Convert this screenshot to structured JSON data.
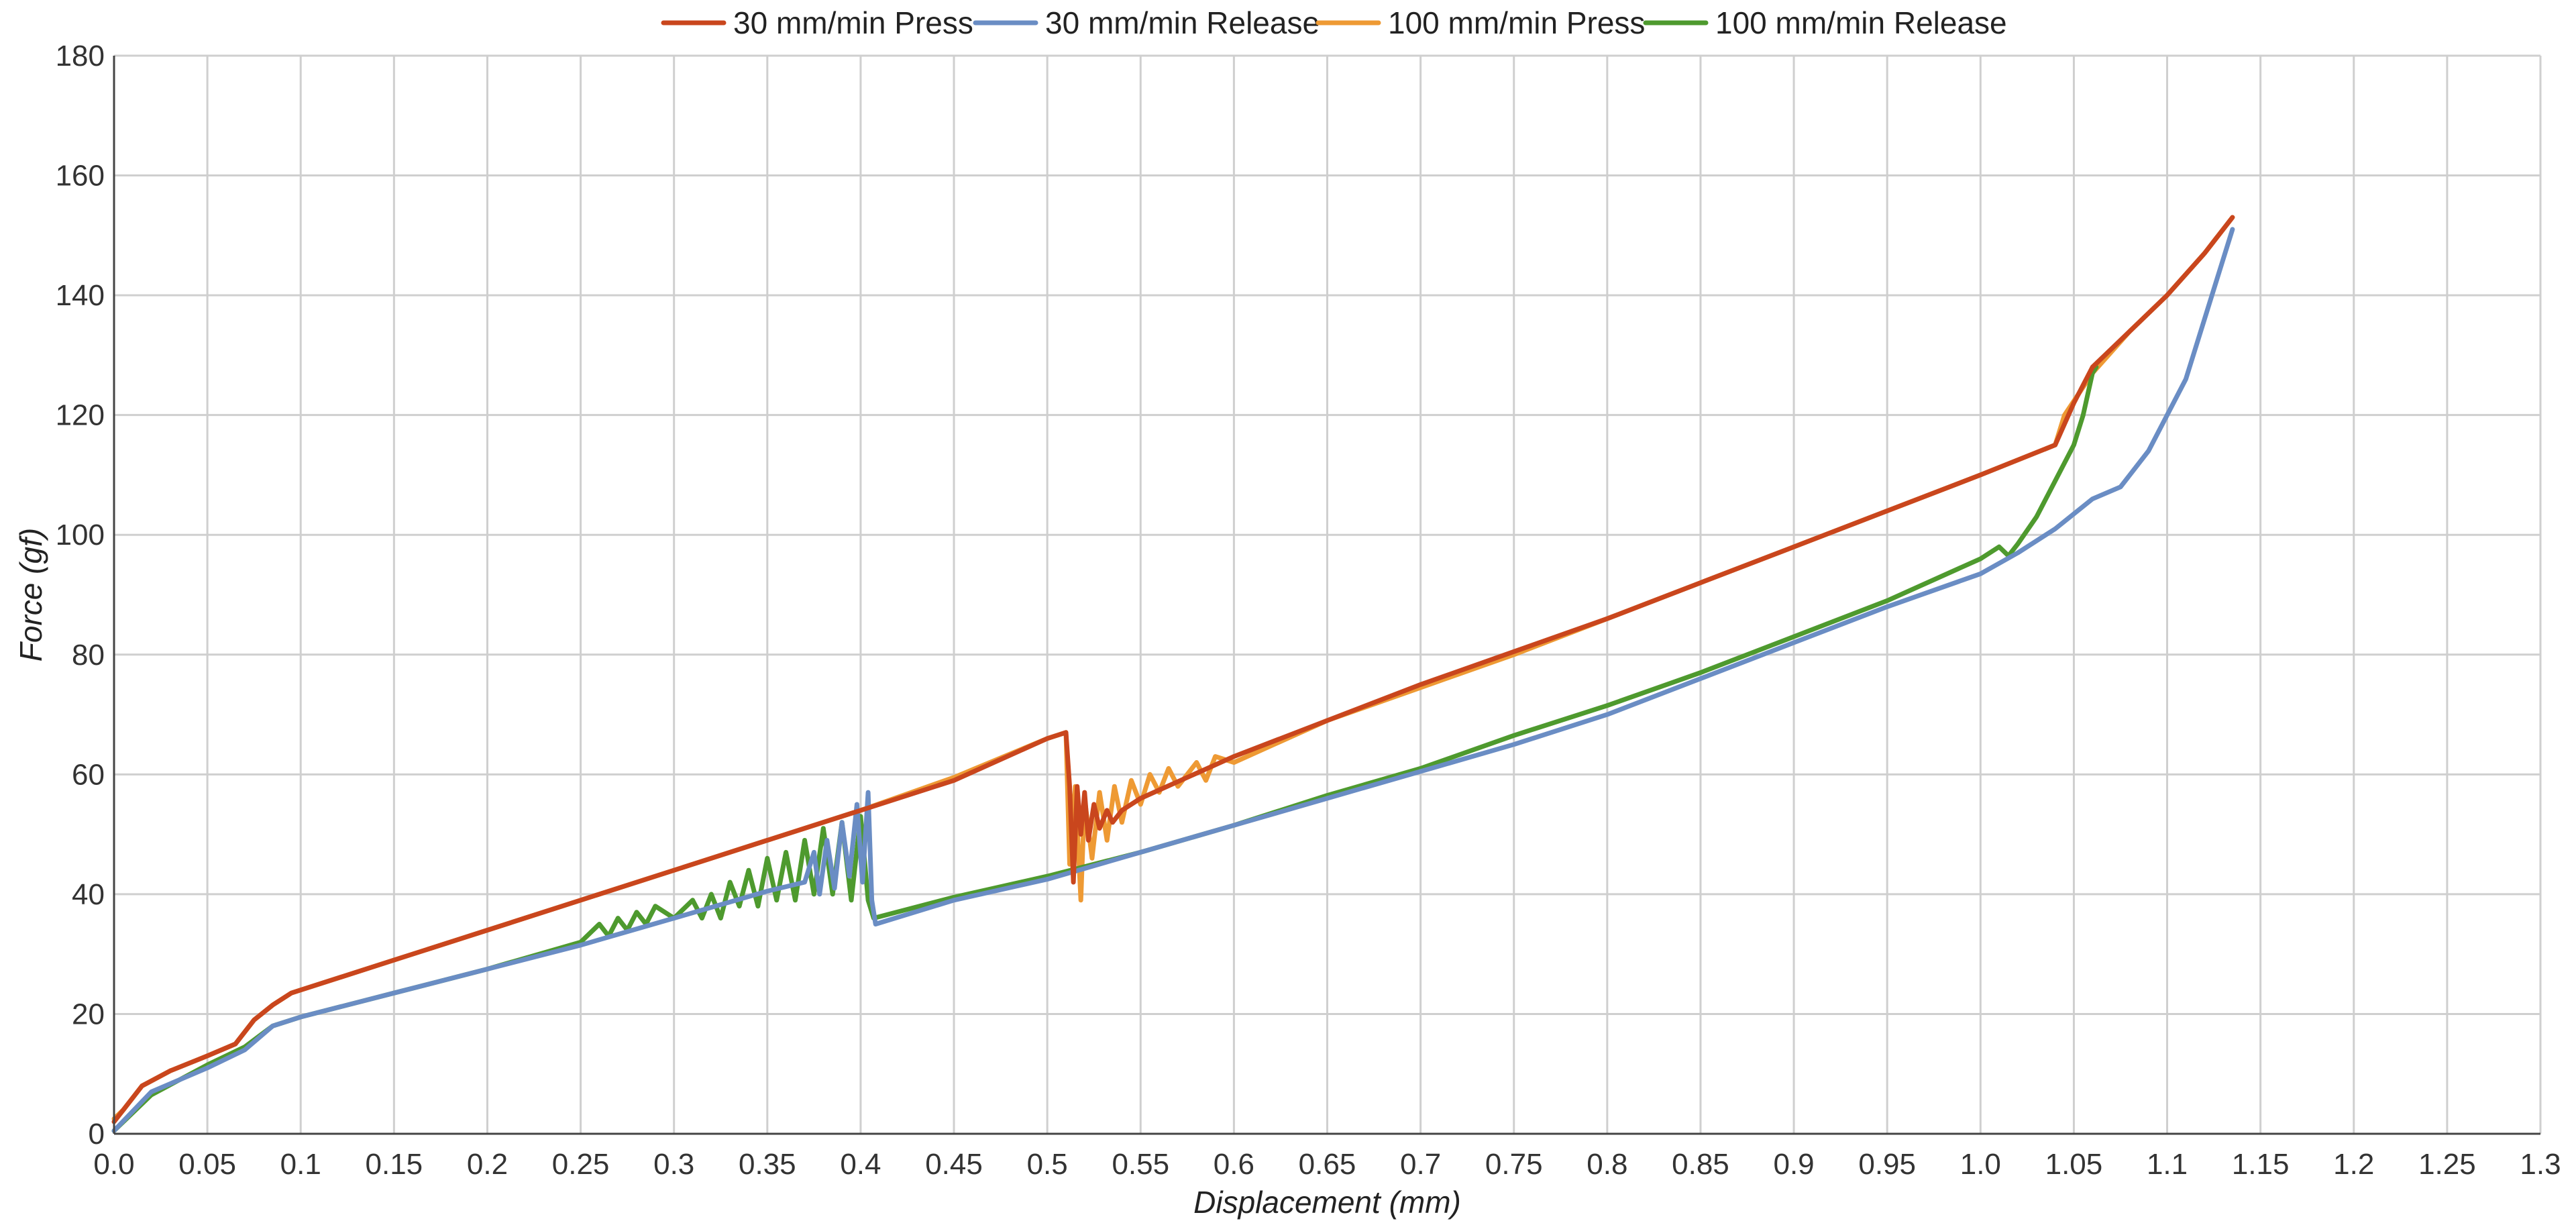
{
  "chart_data": {
    "type": "line",
    "title": "",
    "xlabel": "Displacement (mm)",
    "ylabel": "Force (gf)",
    "xlim": [
      0,
      1.3
    ],
    "ylim": [
      0,
      180
    ],
    "x_ticks": [
      "0.0",
      "0.05",
      "0.1",
      "0.15",
      "0.2",
      "0.25",
      "0.3",
      "0.35",
      "0.4",
      "0.45",
      "0.5",
      "0.55",
      "0.6",
      "0.65",
      "0.7",
      "0.75",
      "0.8",
      "0.85",
      "0.9",
      "0.95",
      "1.0",
      "1.05",
      "1.1",
      "1.15",
      "1.2",
      "1.25",
      "1.3"
    ],
    "y_ticks": [
      "0",
      "20",
      "40",
      "60",
      "80",
      "100",
      "120",
      "140",
      "160",
      "180"
    ],
    "grid": true,
    "legend_position": "top-center",
    "series": [
      {
        "name": "30 mm/min Press",
        "color": "#C9461D",
        "points": [
          [
            0,
            2
          ],
          [
            0.005,
            4
          ],
          [
            0.015,
            8
          ],
          [
            0.03,
            10.5
          ],
          [
            0.05,
            13
          ],
          [
            0.065,
            15
          ],
          [
            0.075,
            19
          ],
          [
            0.085,
            21.5
          ],
          [
            0.095,
            23.5
          ],
          [
            0.1,
            24
          ],
          [
            0.15,
            29
          ],
          [
            0.2,
            34
          ],
          [
            0.25,
            39
          ],
          [
            0.3,
            44
          ],
          [
            0.35,
            49
          ],
          [
            0.4,
            54
          ],
          [
            0.45,
            59
          ],
          [
            0.5,
            66
          ],
          [
            0.51,
            67
          ],
          [
            0.512,
            58
          ],
          [
            0.514,
            42
          ],
          [
            0.516,
            58
          ],
          [
            0.518,
            50
          ],
          [
            0.52,
            57
          ],
          [
            0.522,
            49
          ],
          [
            0.525,
            55
          ],
          [
            0.528,
            51
          ],
          [
            0.532,
            54
          ],
          [
            0.535,
            52
          ],
          [
            0.54,
            54
          ],
          [
            0.55,
            56
          ],
          [
            0.6,
            63
          ],
          [
            0.65,
            69
          ],
          [
            0.7,
            75
          ],
          [
            0.75,
            80.5
          ],
          [
            0.8,
            86
          ],
          [
            0.85,
            92
          ],
          [
            0.9,
            98
          ],
          [
            0.95,
            104
          ],
          [
            1.0,
            110
          ],
          [
            1.04,
            115
          ],
          [
            1.05,
            122
          ],
          [
            1.06,
            128
          ],
          [
            1.08,
            134
          ],
          [
            1.1,
            140
          ],
          [
            1.12,
            147
          ],
          [
            1.135,
            153
          ]
        ]
      },
      {
        "name": "30 mm/min Release",
        "color": "#6A8DC4",
        "points": [
          [
            0,
            0.5
          ],
          [
            0.02,
            7
          ],
          [
            0.05,
            11
          ],
          [
            0.07,
            14
          ],
          [
            0.085,
            18
          ],
          [
            0.1,
            19.5
          ],
          [
            0.15,
            23.5
          ],
          [
            0.2,
            27.5
          ],
          [
            0.25,
            31.5
          ],
          [
            0.3,
            36
          ],
          [
            0.35,
            40.5
          ],
          [
            0.37,
            42
          ],
          [
            0.375,
            47
          ],
          [
            0.378,
            40
          ],
          [
            0.382,
            49
          ],
          [
            0.386,
            41
          ],
          [
            0.39,
            52
          ],
          [
            0.394,
            43
          ],
          [
            0.398,
            55
          ],
          [
            0.401,
            42
          ],
          [
            0.404,
            57
          ],
          [
            0.406,
            39
          ],
          [
            0.408,
            35
          ],
          [
            0.45,
            39
          ],
          [
            0.5,
            42.5
          ],
          [
            0.55,
            47
          ],
          [
            0.6,
            51.5
          ],
          [
            0.65,
            56
          ],
          [
            0.7,
            60.5
          ],
          [
            0.75,
            65
          ],
          [
            0.8,
            70
          ],
          [
            0.85,
            76
          ],
          [
            0.9,
            82
          ],
          [
            0.95,
            88
          ],
          [
            1.0,
            93.5
          ],
          [
            1.02,
            97
          ],
          [
            1.04,
            101
          ],
          [
            1.06,
            106
          ],
          [
            1.075,
            108
          ],
          [
            1.09,
            114
          ],
          [
            1.1,
            120
          ],
          [
            1.11,
            126
          ],
          [
            1.12,
            136
          ],
          [
            1.13,
            146
          ],
          [
            1.135,
            151
          ]
        ]
      },
      {
        "name": "100 mm/min Press",
        "color": "#EE9A34",
        "points": [
          [
            0,
            2.5
          ],
          [
            0.005,
            4
          ],
          [
            0.015,
            8
          ],
          [
            0.03,
            10.5
          ],
          [
            0.05,
            13
          ],
          [
            0.065,
            15
          ],
          [
            0.075,
            19
          ],
          [
            0.085,
            21.5
          ],
          [
            0.095,
            23.5
          ],
          [
            0.1,
            24
          ],
          [
            0.15,
            29
          ],
          [
            0.2,
            34
          ],
          [
            0.25,
            39
          ],
          [
            0.3,
            44
          ],
          [
            0.35,
            49
          ],
          [
            0.4,
            54
          ],
          [
            0.45,
            59.5
          ],
          [
            0.5,
            66
          ],
          [
            0.51,
            67
          ],
          [
            0.512,
            45
          ],
          [
            0.515,
            58
          ],
          [
            0.518,
            39
          ],
          [
            0.52,
            56
          ],
          [
            0.524,
            46
          ],
          [
            0.528,
            57
          ],
          [
            0.532,
            49
          ],
          [
            0.536,
            58
          ],
          [
            0.54,
            52
          ],
          [
            0.545,
            59
          ],
          [
            0.55,
            55
          ],
          [
            0.555,
            60
          ],
          [
            0.56,
            57
          ],
          [
            0.565,
            61
          ],
          [
            0.57,
            58
          ],
          [
            0.58,
            62
          ],
          [
            0.585,
            59
          ],
          [
            0.59,
            63
          ],
          [
            0.6,
            62
          ],
          [
            0.65,
            69
          ],
          [
            0.7,
            74.5
          ],
          [
            0.75,
            80
          ],
          [
            0.8,
            86
          ],
          [
            0.85,
            92
          ],
          [
            0.9,
            98
          ],
          [
            0.95,
            104
          ],
          [
            1.0,
            110
          ],
          [
            1.04,
            115
          ],
          [
            1.045,
            120
          ],
          [
            1.06,
            127
          ],
          [
            1.08,
            134
          ],
          [
            1.1,
            140
          ],
          [
            1.12,
            147
          ],
          [
            1.135,
            153
          ]
        ]
      },
      {
        "name": "100 mm/min Release",
        "color": "#4E9A2E",
        "points": [
          [
            0,
            0.5
          ],
          [
            0.02,
            6.5
          ],
          [
            0.05,
            11.5
          ],
          [
            0.07,
            14.5
          ],
          [
            0.085,
            18
          ],
          [
            0.1,
            19.5
          ],
          [
            0.15,
            23.5
          ],
          [
            0.2,
            27.5
          ],
          [
            0.25,
            32
          ],
          [
            0.26,
            35
          ],
          [
            0.265,
            33
          ],
          [
            0.27,
            36
          ],
          [
            0.275,
            34
          ],
          [
            0.28,
            37
          ],
          [
            0.285,
            35
          ],
          [
            0.29,
            38
          ],
          [
            0.3,
            36
          ],
          [
            0.31,
            39
          ],
          [
            0.315,
            36
          ],
          [
            0.32,
            40
          ],
          [
            0.325,
            36
          ],
          [
            0.33,
            42
          ],
          [
            0.335,
            38
          ],
          [
            0.34,
            44
          ],
          [
            0.345,
            38
          ],
          [
            0.35,
            46
          ],
          [
            0.355,
            39
          ],
          [
            0.36,
            47
          ],
          [
            0.365,
            39
          ],
          [
            0.37,
            49
          ],
          [
            0.375,
            40
          ],
          [
            0.38,
            51
          ],
          [
            0.385,
            40
          ],
          [
            0.39,
            52
          ],
          [
            0.395,
            39
          ],
          [
            0.4,
            53
          ],
          [
            0.404,
            39
          ],
          [
            0.407,
            36
          ],
          [
            0.45,
            39.5
          ],
          [
            0.5,
            43
          ],
          [
            0.55,
            47
          ],
          [
            0.6,
            51.5
          ],
          [
            0.65,
            56.5
          ],
          [
            0.7,
            61
          ],
          [
            0.75,
            66.5
          ],
          [
            0.8,
            71.5
          ],
          [
            0.85,
            77
          ],
          [
            0.9,
            83
          ],
          [
            0.95,
            89
          ],
          [
            1.0,
            96
          ],
          [
            1.01,
            98
          ],
          [
            1.015,
            96.5
          ],
          [
            1.02,
            98.5
          ],
          [
            1.03,
            103
          ],
          [
            1.04,
            109
          ],
          [
            1.05,
            115
          ],
          [
            1.055,
            120
          ],
          [
            1.06,
            127
          ],
          [
            1.062,
            128
          ]
        ]
      }
    ]
  }
}
